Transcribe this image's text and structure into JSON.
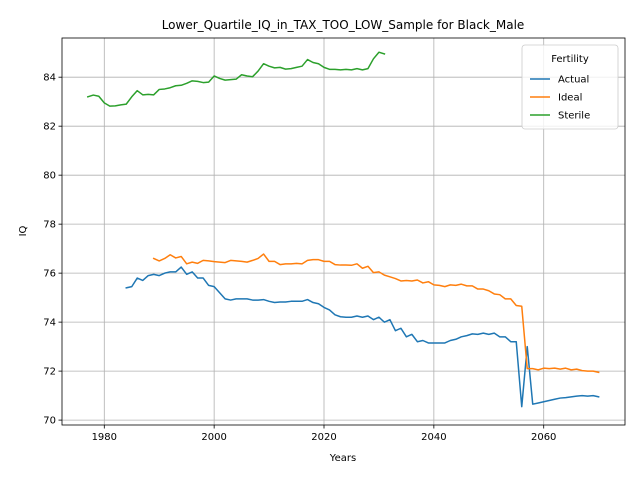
{
  "chart_data": {
    "type": "line",
    "title": "Lower_Quartile_IQ_in_TAX_TOO_LOW_Sample for Black_Male",
    "xlabel": "Years",
    "ylabel": "IQ",
    "xlim": [
      1972.3,
      2074.8
    ],
    "ylim": [
      69.8,
      85.6
    ],
    "xticks": [
      1980,
      2000,
      2020,
      2040,
      2060
    ],
    "yticks": [
      70,
      72,
      74,
      76,
      78,
      80,
      82,
      84
    ],
    "grid": true,
    "legend": {
      "title": "Fertility",
      "placement": "top-right"
    },
    "series": [
      {
        "name": "Actual",
        "color": "#1f77b4",
        "x": [
          1984,
          1985,
          1986,
          1987,
          1988,
          1989,
          1990,
          1991,
          1992,
          1993,
          1994,
          1995,
          1996,
          1997,
          1998,
          1999,
          2000,
          2001,
          2002,
          2003,
          2004,
          2005,
          2006,
          2007,
          2008,
          2009,
          2010,
          2011,
          2012,
          2013,
          2014,
          2015,
          2016,
          2017,
          2018,
          2019,
          2020,
          2021,
          2022,
          2023,
          2024,
          2025,
          2026,
          2027,
          2028,
          2029,
          2030,
          2031,
          2032,
          2033,
          2034,
          2035,
          2036,
          2037,
          2038,
          2039,
          2040,
          2041,
          2042,
          2043,
          2044,
          2045,
          2046,
          2047,
          2048,
          2049,
          2050,
          2051,
          2052,
          2053,
          2054,
          2055,
          2056,
          2057,
          2058,
          2059,
          2060,
          2061,
          2062,
          2063,
          2064,
          2065,
          2066,
          2067,
          2068,
          2069,
          2070
        ],
        "y": [
          75.4,
          75.45,
          75.8,
          75.7,
          75.9,
          75.95,
          75.9,
          76.0,
          76.05,
          76.05,
          76.25,
          75.95,
          76.05,
          75.8,
          75.8,
          75.5,
          75.45,
          75.2,
          74.95,
          74.9,
          74.95,
          74.95,
          74.95,
          74.9,
          74.9,
          74.92,
          74.85,
          74.8,
          74.82,
          74.82,
          74.85,
          74.85,
          74.85,
          74.92,
          74.8,
          74.75,
          74.6,
          74.5,
          74.3,
          74.22,
          74.2,
          74.2,
          74.25,
          74.2,
          74.25,
          74.1,
          74.2,
          74.0,
          74.1,
          73.65,
          73.75,
          73.4,
          73.5,
          73.2,
          73.25,
          73.15,
          73.15,
          73.15,
          73.15,
          73.25,
          73.3,
          73.4,
          73.45,
          73.52,
          73.5,
          73.55,
          73.5,
          73.55,
          73.4,
          73.4,
          73.2,
          73.2,
          70.55,
          73.0,
          70.65,
          70.7,
          70.75,
          70.8,
          70.85,
          70.9,
          70.92,
          70.95,
          70.98,
          71.0,
          70.98,
          71.0,
          70.95
        ]
      },
      {
        "name": "Ideal",
        "color": "#ff7f0e",
        "x": [
          1989,
          1990,
          1991,
          1992,
          1993,
          1994,
          1995,
          1996,
          1997,
          1998,
          1999,
          2000,
          2001,
          2002,
          2003,
          2004,
          2005,
          2006,
          2007,
          2008,
          2009,
          2010,
          2011,
          2012,
          2013,
          2014,
          2015,
          2016,
          2017,
          2018,
          2019,
          2020,
          2021,
          2022,
          2023,
          2024,
          2025,
          2026,
          2027,
          2028,
          2029,
          2030,
          2031,
          2032,
          2033,
          2034,
          2035,
          2036,
          2037,
          2038,
          2039,
          2040,
          2041,
          2042,
          2043,
          2044,
          2045,
          2046,
          2047,
          2048,
          2049,
          2050,
          2051,
          2052,
          2053,
          2054,
          2055,
          2056,
          2057,
          2058,
          2059,
          2060,
          2061,
          2062,
          2063,
          2064,
          2065,
          2066,
          2067,
          2068,
          2069,
          2070
        ],
        "y": [
          76.6,
          76.5,
          76.6,
          76.75,
          76.62,
          76.68,
          76.38,
          76.45,
          76.4,
          76.52,
          76.5,
          76.47,
          76.45,
          76.43,
          76.52,
          76.5,
          76.48,
          76.45,
          76.52,
          76.6,
          76.78,
          76.48,
          76.48,
          76.35,
          76.38,
          76.38,
          76.4,
          76.38,
          76.52,
          76.55,
          76.55,
          76.48,
          76.48,
          76.35,
          76.33,
          76.33,
          76.32,
          76.38,
          76.2,
          76.28,
          76.02,
          76.05,
          75.92,
          75.85,
          75.78,
          75.68,
          75.7,
          75.68,
          75.72,
          75.6,
          75.65,
          75.52,
          75.5,
          75.45,
          75.52,
          75.5,
          75.55,
          75.48,
          75.48,
          75.35,
          75.35,
          75.28,
          75.15,
          75.12,
          74.95,
          74.95,
          74.68,
          74.65,
          72.1,
          72.1,
          72.05,
          72.12,
          72.1,
          72.12,
          72.08,
          72.12,
          72.05,
          72.08,
          72.02,
          72.0,
          72.0,
          71.95
        ]
      },
      {
        "name": "Sterile",
        "color": "#2ca02c",
        "x": [
          1977,
          1978,
          1979,
          1980,
          1981,
          1982,
          1983,
          1984,
          1985,
          1986,
          1987,
          1988,
          1989,
          1990,
          1991,
          1992,
          1993,
          1994,
          1995,
          1996,
          1997,
          1998,
          1999,
          2000,
          2001,
          2002,
          2003,
          2004,
          2005,
          2006,
          2007,
          2008,
          2009,
          2010,
          2011,
          2012,
          2013,
          2014,
          2015,
          2016,
          2017,
          2018,
          2019,
          2020,
          2021,
          2022,
          2023,
          2024,
          2025,
          2026,
          2027,
          2028,
          2029,
          2030,
          2031
        ],
        "y": [
          83.2,
          83.27,
          83.22,
          82.95,
          82.82,
          82.83,
          82.87,
          82.9,
          83.2,
          83.45,
          83.28,
          83.3,
          83.28,
          83.5,
          83.52,
          83.57,
          83.65,
          83.67,
          83.75,
          83.85,
          83.83,
          83.78,
          83.8,
          84.05,
          83.95,
          83.88,
          83.9,
          83.92,
          84.1,
          84.05,
          84.02,
          84.25,
          84.55,
          84.45,
          84.38,
          84.4,
          84.33,
          84.35,
          84.4,
          84.45,
          84.72,
          84.6,
          84.55,
          84.4,
          84.32,
          84.32,
          84.3,
          84.32,
          84.3,
          84.35,
          84.3,
          84.35,
          84.75,
          85.02,
          84.95
        ]
      }
    ]
  }
}
